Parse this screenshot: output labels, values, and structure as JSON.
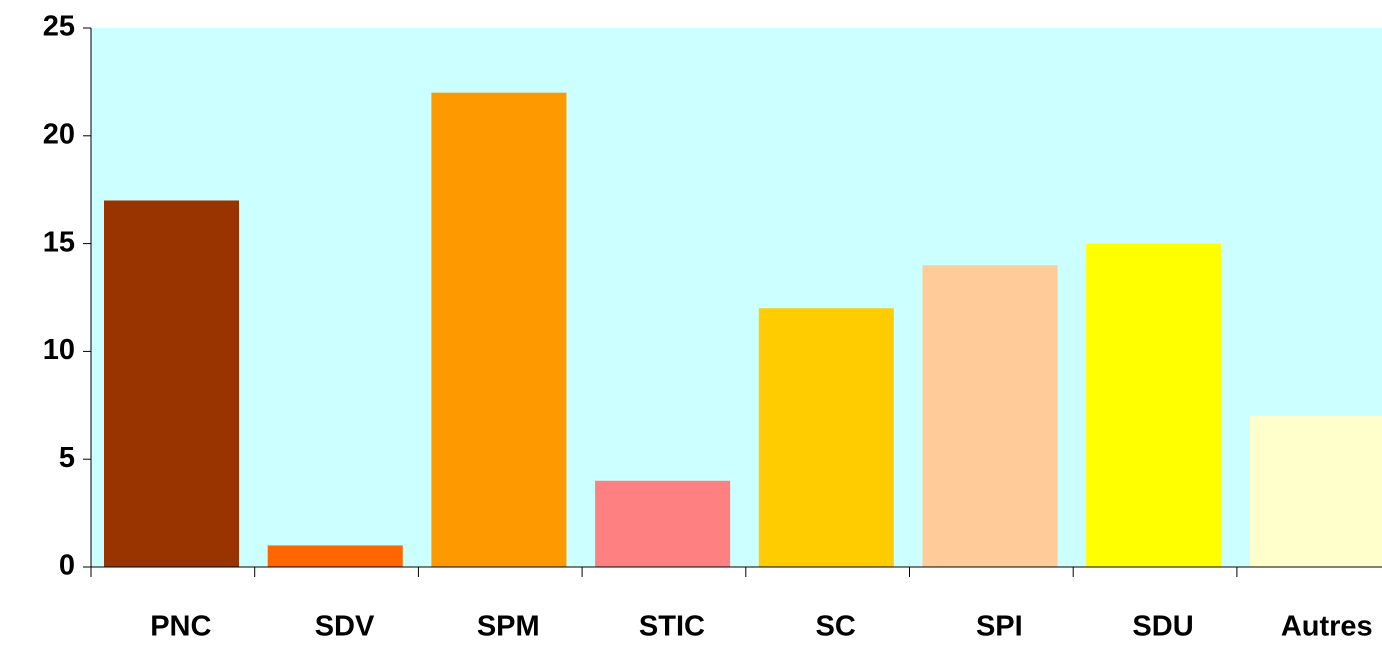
{
  "chart_data": {
    "type": "bar",
    "categories": [
      "PNC",
      "SDV",
      "SPM",
      "STIC",
      "SC",
      "SPI",
      "SDU",
      "Autres"
    ],
    "values": [
      17,
      1,
      22,
      4,
      12,
      14,
      15,
      7
    ],
    "colors": [
      "#993300",
      "#ff6600",
      "#ff9900",
      "#ff8080",
      "#ffcc00",
      "#ffcc99",
      "#ffff00",
      "#ffffcc"
    ],
    "ylim": [
      0,
      25
    ],
    "yticks": [
      0,
      5,
      10,
      15,
      20,
      25
    ],
    "grid": false
  }
}
